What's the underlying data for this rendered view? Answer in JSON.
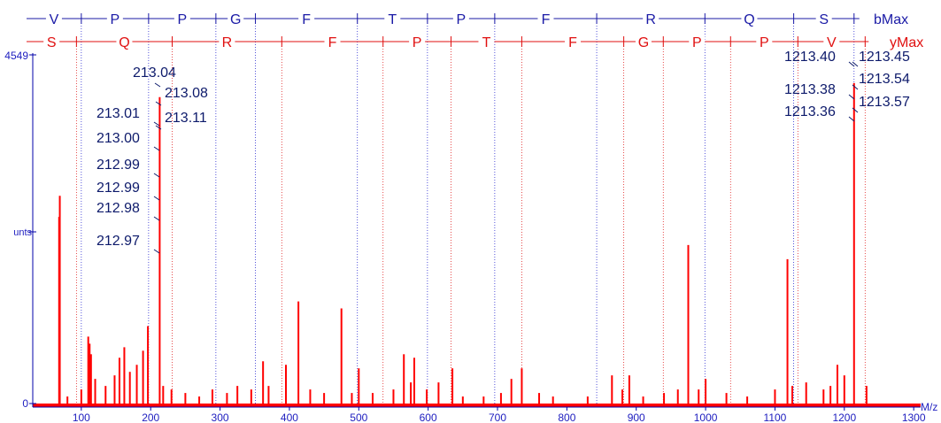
{
  "chart_data": {
    "type": "bar",
    "title": "",
    "xlabel": "M/z",
    "ylabel": "unts",
    "y_top_label": "4549",
    "y_zero_label": "0",
    "xlim": [
      30,
      1310
    ],
    "x_ticks": [
      100,
      200,
      300,
      400,
      500,
      600,
      700,
      800,
      900,
      1000,
      1100,
      1200,
      1300
    ],
    "colors": {
      "b_ions": "#1a1aa6",
      "y_ions": "#e01010",
      "spectrum": "#ff0000",
      "annotation": "#0d1a6b"
    },
    "b_series": {
      "label": "bMax",
      "residues": [
        "V",
        "P",
        "P",
        "G",
        "F",
        "T",
        "P",
        "F",
        "R",
        "Q",
        "S"
      ],
      "boundaries": [
        100,
        197,
        294,
        351,
        498,
        599,
        696,
        843,
        999,
        1127,
        1214
      ]
    },
    "y_series": {
      "label": "yMax",
      "residues": [
        "S",
        "Q",
        "R",
        "F",
        "P",
        "T",
        "F",
        "G",
        "P",
        "P",
        "V"
      ],
      "boundaries": [
        93,
        231,
        389,
        535,
        633,
        735,
        882,
        939,
        1036,
        1133,
        1230
      ]
    },
    "peaks": [
      {
        "x": 68,
        "y": 0.54
      },
      {
        "x": 69,
        "y": 0.6
      },
      {
        "x": 80,
        "y": 0.03
      },
      {
        "x": 100,
        "y": 0.05
      },
      {
        "x": 110,
        "y": 0.2
      },
      {
        "x": 112,
        "y": 0.18
      },
      {
        "x": 114,
        "y": 0.15
      },
      {
        "x": 120,
        "y": 0.08
      },
      {
        "x": 135,
        "y": 0.06
      },
      {
        "x": 148,
        "y": 0.09
      },
      {
        "x": 155,
        "y": 0.14
      },
      {
        "x": 162,
        "y": 0.17
      },
      {
        "x": 170,
        "y": 0.1
      },
      {
        "x": 180,
        "y": 0.12
      },
      {
        "x": 189,
        "y": 0.16
      },
      {
        "x": 196,
        "y": 0.23
      },
      {
        "x": 213,
        "y": 0.88
      },
      {
        "x": 218,
        "y": 0.06
      },
      {
        "x": 230,
        "y": 0.05
      },
      {
        "x": 250,
        "y": 0.04
      },
      {
        "x": 270,
        "y": 0.03
      },
      {
        "x": 289,
        "y": 0.05
      },
      {
        "x": 310,
        "y": 0.04
      },
      {
        "x": 325,
        "y": 0.06
      },
      {
        "x": 345,
        "y": 0.05
      },
      {
        "x": 362,
        "y": 0.13
      },
      {
        "x": 370,
        "y": 0.06
      },
      {
        "x": 395,
        "y": 0.12
      },
      {
        "x": 413,
        "y": 0.3
      },
      {
        "x": 430,
        "y": 0.05
      },
      {
        "x": 450,
        "y": 0.04
      },
      {
        "x": 475,
        "y": 0.28
      },
      {
        "x": 490,
        "y": 0.04
      },
      {
        "x": 500,
        "y": 0.11
      },
      {
        "x": 520,
        "y": 0.04
      },
      {
        "x": 550,
        "y": 0.05
      },
      {
        "x": 565,
        "y": 0.15
      },
      {
        "x": 575,
        "y": 0.07
      },
      {
        "x": 580,
        "y": 0.14
      },
      {
        "x": 598,
        "y": 0.05
      },
      {
        "x": 615,
        "y": 0.07
      },
      {
        "x": 635,
        "y": 0.11
      },
      {
        "x": 650,
        "y": 0.03
      },
      {
        "x": 680,
        "y": 0.03
      },
      {
        "x": 705,
        "y": 0.04
      },
      {
        "x": 720,
        "y": 0.08
      },
      {
        "x": 735,
        "y": 0.11
      },
      {
        "x": 760,
        "y": 0.04
      },
      {
        "x": 780,
        "y": 0.03
      },
      {
        "x": 830,
        "y": 0.03
      },
      {
        "x": 865,
        "y": 0.09
      },
      {
        "x": 880,
        "y": 0.05
      },
      {
        "x": 890,
        "y": 0.09
      },
      {
        "x": 910,
        "y": 0.03
      },
      {
        "x": 940,
        "y": 0.04
      },
      {
        "x": 960,
        "y": 0.05
      },
      {
        "x": 975,
        "y": 0.46
      },
      {
        "x": 990,
        "y": 0.05
      },
      {
        "x": 1000,
        "y": 0.08
      },
      {
        "x": 1030,
        "y": 0.04
      },
      {
        "x": 1060,
        "y": 0.03
      },
      {
        "x": 1100,
        "y": 0.05
      },
      {
        "x": 1118,
        "y": 0.42
      },
      {
        "x": 1125,
        "y": 0.06
      },
      {
        "x": 1145,
        "y": 0.07
      },
      {
        "x": 1170,
        "y": 0.05
      },
      {
        "x": 1180,
        "y": 0.06
      },
      {
        "x": 1190,
        "y": 0.12
      },
      {
        "x": 1200,
        "y": 0.09
      },
      {
        "x": 1214,
        "y": 0.92
      },
      {
        "x": 1232,
        "y": 0.06
      }
    ],
    "annotations_left": [
      "213.04",
      "213.08",
      "213.01",
      "213.11",
      "213.00",
      "212.99",
      "212.99",
      "212.98",
      "212.97"
    ],
    "annotations_right": [
      "1213.40",
      "1213.45",
      "1213.54",
      "1213.38",
      "1213.36",
      "1213.57"
    ]
  }
}
